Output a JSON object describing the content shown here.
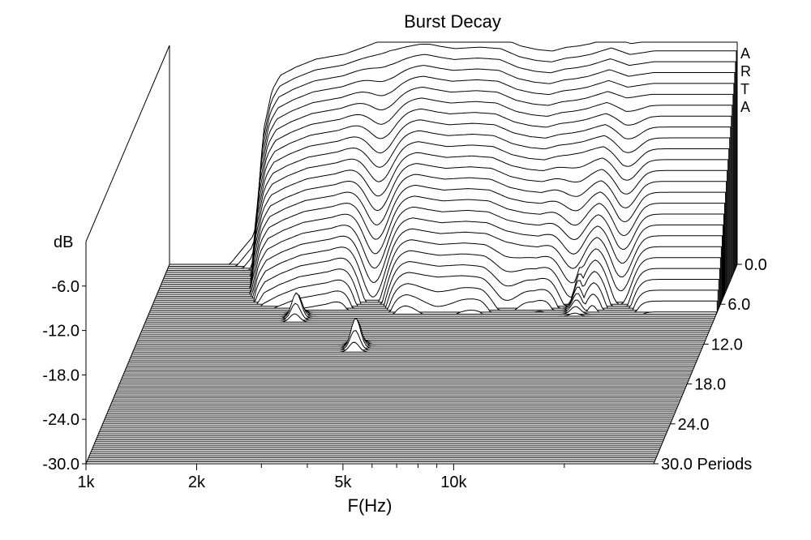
{
  "chart_data": {
    "type": "waterfall",
    "title": "Burst Decay",
    "xlabel": "F(Hz)",
    "ylabel": "dB",
    "zlabel_suffix": "Periods",
    "x_scale": "log",
    "xlim": [
      1000,
      35000
    ],
    "ylim": [
      -30,
      0
    ],
    "zlim": [
      0,
      30
    ],
    "x_ticks": [
      {
        "value": 1000,
        "label": "1k"
      },
      {
        "value": 2000,
        "label": "2k"
      },
      {
        "value": 5000,
        "label": "5k"
      },
      {
        "value": 10000,
        "label": "10k"
      }
    ],
    "x_minor_ticks": [
      3000,
      4000,
      6000,
      7000,
      8000,
      9000,
      20000
    ],
    "y_ticks": [
      "-6.0",
      "-12.0",
      "-18.0",
      "-24.0",
      "-30.0"
    ],
    "z_ticks": [
      "0.0",
      "6.0",
      "12.0",
      "18.0",
      "24.0",
      "30.0 Periods"
    ],
    "watermark": [
      "A",
      "R",
      "T",
      "A"
    ],
    "slice_count": 100,
    "slice_step_periods": 0.3,
    "front_response": {
      "freq": [
        1700,
        1750,
        1800,
        1900,
        2000,
        2200,
        2500,
        3000,
        3500,
        4000,
        4500,
        5000,
        5500,
        6000,
        7000,
        8000,
        9000,
        10000,
        11000,
        12000,
        13000,
        14000,
        16000,
        18000,
        21000,
        25000,
        30000,
        35000
      ],
      "db": [
        -26,
        -20,
        -12,
        -6.5,
        -4.5,
        -3.4,
        -2.3,
        -1.6,
        -0.4,
        0.8,
        1.0,
        1.3,
        0.9,
        0.6,
        0.8,
        0.6,
        -0.5,
        -1.0,
        -1.2,
        -0.7,
        -0.5,
        -0.2,
        0.7,
        -0.2,
        0.3,
        0.3,
        0.3,
        0.3
      ]
    },
    "notches": [
      {
        "freq": 3950,
        "depth_db": 12,
        "width_oct": 0.045,
        "start": 0.0
      },
      {
        "freq": 5900,
        "depth_db": 9,
        "width_oct": 0.045,
        "start": 0.22
      },
      {
        "freq": 6500,
        "depth_db": 7,
        "width_oct": 0.045,
        "start": 0.22
      },
      {
        "freq": 9200,
        "depth_db": 12,
        "width_oct": 0.04,
        "start": 0.18
      },
      {
        "freq": 13800,
        "depth_db": 12,
        "width_oct": 0.04,
        "start": 0.1
      },
      {
        "freq": 18700,
        "depth_db": 10,
        "width_oct": 0.04,
        "start": 0.05
      },
      {
        "freq": 2600,
        "depth_db": 8,
        "width_oct": 0.05,
        "start": 0.25
      },
      {
        "freq": 2300,
        "depth_db": 6,
        "width_oct": 0.05,
        "start": 0.3
      },
      {
        "freq": 3150,
        "depth_db": 7,
        "width_oct": 0.05,
        "start": 0.35
      },
      {
        "freq": 4500,
        "depth_db": 6,
        "width_oct": 0.05,
        "start": 0.3
      },
      {
        "freq": 8000,
        "depth_db": 6,
        "width_oct": 0.05,
        "start": 0.3
      },
      {
        "freq": 11000,
        "depth_db": 5,
        "width_oct": 0.05,
        "start": 0.35
      },
      {
        "freq": 15500,
        "depth_db": 5,
        "width_oct": 0.05,
        "start": 0.35
      },
      {
        "freq": 22000,
        "depth_db": 5,
        "width_oct": 0.05,
        "start": 0.35
      },
      {
        "freq": 27000,
        "depth_db": 4,
        "width_oct": 0.05,
        "start": 0.4
      }
    ],
    "ridges": [
      {
        "freq": 10600,
        "periods": [
          0,
          6.5
        ],
        "height_db": 18
      },
      {
        "freq": 14500,
        "periods": [
          0,
          8
        ],
        "height_db": 14
      },
      {
        "freq": 2550,
        "periods": [
          7,
          9
        ],
        "height_db": 3.8
      },
      {
        "freq": 4000,
        "periods": [
          11.5,
          13.5
        ],
        "height_db": 4.5
      }
    ]
  }
}
